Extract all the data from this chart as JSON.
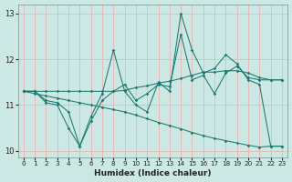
{
  "xlabel": "Humidex (Indice chaleur)",
  "bg_color": "#cce8e5",
  "grid_color": "#e8b4b4",
  "line_color": "#1a7a6e",
  "xlim": [
    -0.5,
    23.5
  ],
  "ylim": [
    9.85,
    13.2
  ],
  "yticks": [
    10,
    11,
    12,
    13
  ],
  "xticks": [
    0,
    1,
    2,
    3,
    4,
    5,
    6,
    7,
    8,
    9,
    10,
    11,
    12,
    13,
    14,
    15,
    16,
    17,
    18,
    19,
    20,
    21,
    22,
    23
  ],
  "line1_x": [
    0,
    1,
    2,
    3,
    4,
    5,
    6,
    7,
    8,
    9,
    10,
    11,
    12,
    13,
    14,
    15,
    16,
    17,
    18,
    19,
    20,
    21,
    22,
    23
  ],
  "line1_y": [
    11.3,
    11.3,
    11.1,
    11.05,
    10.85,
    10.1,
    10.65,
    11.1,
    11.3,
    11.45,
    11.1,
    11.25,
    11.45,
    11.4,
    12.55,
    11.55,
    11.65,
    11.25,
    11.7,
    11.85,
    11.6,
    11.55,
    11.55,
    11.55
  ],
  "line2_x": [
    0,
    1,
    2,
    3,
    4,
    5,
    6,
    7,
    8,
    9,
    10,
    11,
    12,
    13,
    14,
    15,
    16,
    17,
    18,
    19,
    20,
    21,
    22,
    23
  ],
  "line2_y": [
    11.3,
    11.3,
    11.05,
    11.0,
    10.5,
    10.1,
    10.75,
    11.25,
    12.2,
    11.3,
    11.0,
    10.85,
    11.5,
    11.3,
    13.0,
    12.2,
    11.7,
    11.8,
    12.1,
    11.9,
    11.55,
    11.45,
    10.1,
    10.1
  ],
  "line3_x": [
    0,
    1,
    2,
    3,
    4,
    5,
    6,
    7,
    8,
    9,
    10,
    11,
    12,
    13,
    14,
    15,
    16,
    17,
    18,
    19,
    20,
    21,
    22,
    23
  ],
  "line3_y": [
    11.3,
    11.25,
    11.2,
    11.15,
    11.1,
    11.05,
    11.0,
    10.95,
    10.9,
    10.85,
    10.78,
    10.7,
    10.62,
    10.55,
    10.48,
    10.4,
    10.33,
    10.27,
    10.22,
    10.17,
    10.12,
    10.08,
    10.1,
    10.1
  ],
  "line4_x": [
    0,
    1,
    2,
    3,
    4,
    5,
    6,
    7,
    8,
    9,
    10,
    11,
    12,
    13,
    14,
    15,
    16,
    17,
    18,
    19,
    20,
    21,
    22,
    23
  ],
  "line4_y": [
    11.3,
    11.3,
    11.3,
    11.3,
    11.3,
    11.3,
    11.3,
    11.3,
    11.3,
    11.32,
    11.38,
    11.42,
    11.48,
    11.52,
    11.58,
    11.65,
    11.72,
    11.72,
    11.75,
    11.75,
    11.7,
    11.6,
    11.55,
    11.55
  ]
}
